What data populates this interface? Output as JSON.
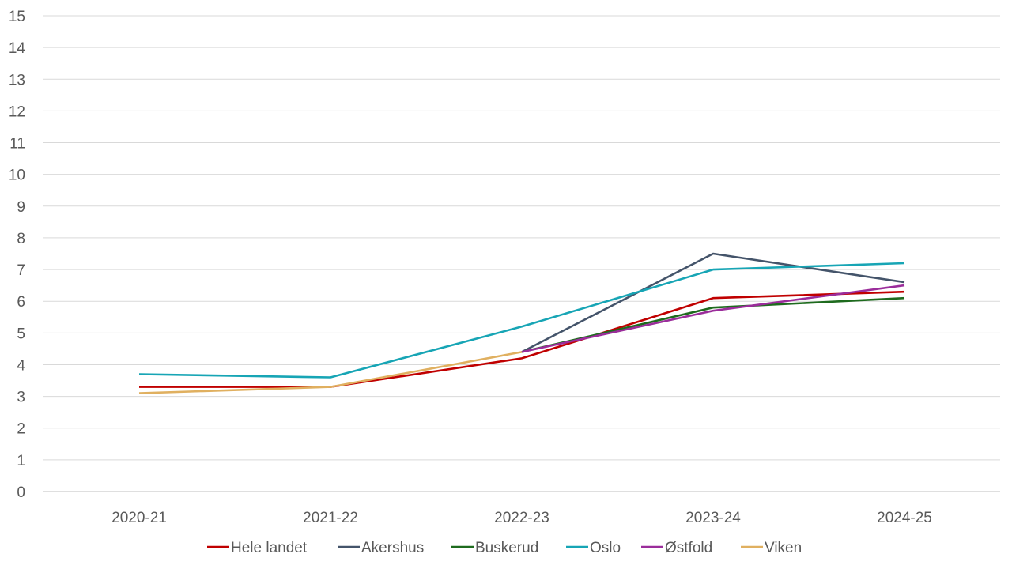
{
  "chart_data": {
    "type": "line",
    "categories": [
      "2020-21",
      "2021-22",
      "2022-23",
      "2023-24",
      "2024-25"
    ],
    "ylim": [
      0,
      15
    ],
    "yticks": [
      0,
      1,
      2,
      3,
      4,
      5,
      6,
      7,
      8,
      9,
      10,
      11,
      12,
      13,
      14,
      15
    ],
    "grid": true,
    "legend_position": "bottom",
    "series": [
      {
        "name": "Hele landet",
        "color": "#c00000",
        "values": [
          3.3,
          3.3,
          4.2,
          6.1,
          6.3
        ]
      },
      {
        "name": "Akershus",
        "color": "#44546a",
        "values": [
          null,
          null,
          4.4,
          7.5,
          6.6
        ]
      },
      {
        "name": "Buskerud",
        "color": "#1e6b1e",
        "values": [
          null,
          null,
          4.4,
          5.8,
          6.1
        ]
      },
      {
        "name": "Oslo",
        "color": "#17a5b5",
        "values": [
          3.7,
          3.6,
          5.2,
          7.0,
          7.2
        ]
      },
      {
        "name": "Østfold",
        "color": "#9b2d9b",
        "values": [
          null,
          null,
          4.4,
          5.7,
          6.5
        ]
      },
      {
        "name": "Viken",
        "color": "#e0b060",
        "values": [
          3.1,
          3.3,
          4.4,
          null,
          null
        ]
      }
    ]
  }
}
